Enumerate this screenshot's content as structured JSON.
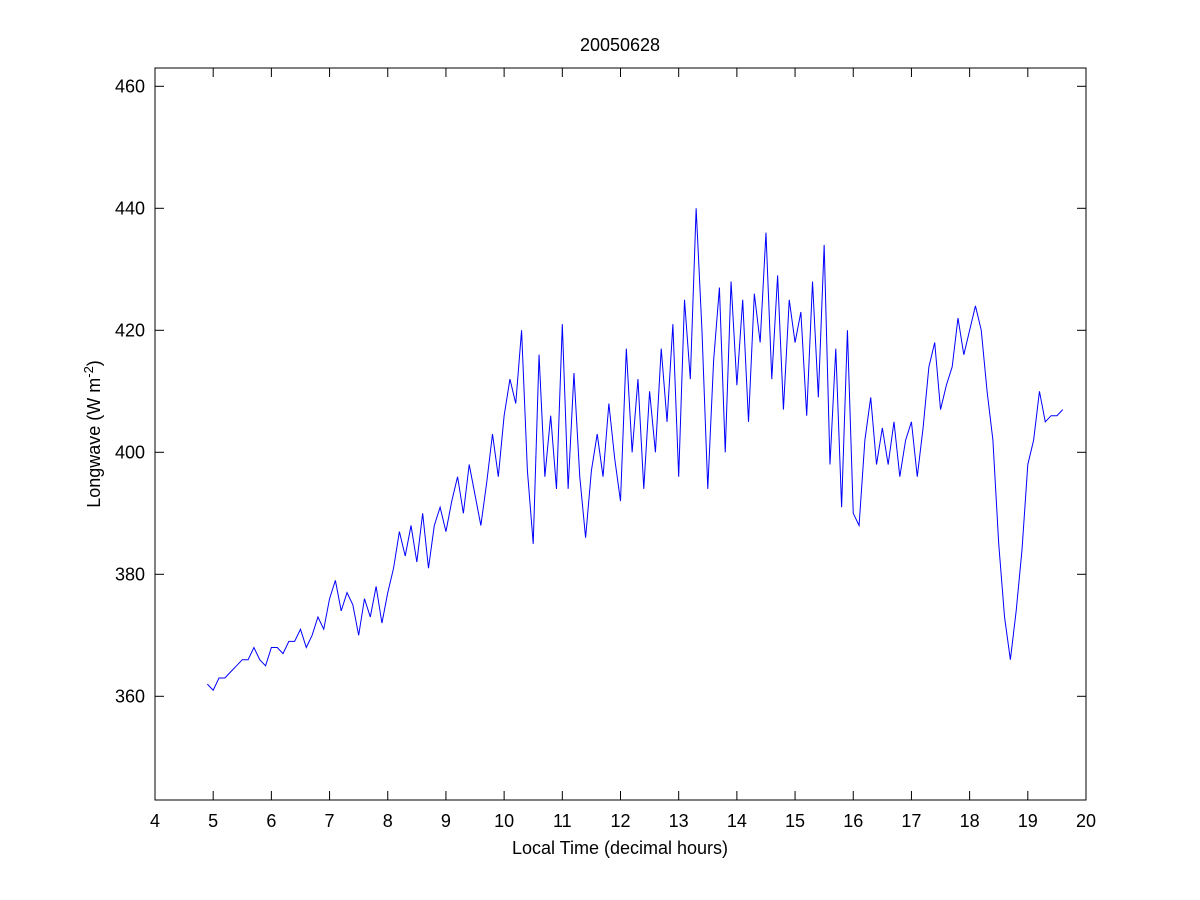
{
  "chart_data": {
    "type": "line",
    "title": "20050628",
    "xlabel": "Local Time (decimal hours)",
    "ylabel": [
      "Longwave (W m",
      "-2",
      ")"
    ],
    "color": "#0000ff",
    "grid": false,
    "xlim": [
      4,
      20
    ],
    "xticks": [
      4,
      5,
      6,
      7,
      8,
      9,
      10,
      11,
      12,
      13,
      14,
      15,
      16,
      17,
      18,
      19,
      20
    ],
    "ylim": [
      343,
      463
    ],
    "yticks": [
      360,
      380,
      400,
      420,
      440,
      460
    ],
    "x": [
      4.9,
      5.0,
      5.1,
      5.2,
      5.3,
      5.4,
      5.5,
      5.6,
      5.7,
      5.8,
      5.9,
      6.0,
      6.1,
      6.2,
      6.3,
      6.4,
      6.5,
      6.6,
      6.7,
      6.8,
      6.9,
      7.0,
      7.1,
      7.2,
      7.3,
      7.4,
      7.5,
      7.6,
      7.7,
      7.8,
      7.9,
      8.0,
      8.1,
      8.2,
      8.3,
      8.4,
      8.5,
      8.6,
      8.7,
      8.8,
      8.9,
      9.0,
      9.1,
      9.2,
      9.3,
      9.4,
      9.5,
      9.6,
      9.7,
      9.8,
      9.9,
      10.0,
      10.1,
      10.2,
      10.3,
      10.4,
      10.5,
      10.6,
      10.7,
      10.8,
      10.9,
      11.0,
      11.1,
      11.2,
      11.3,
      11.4,
      11.5,
      11.6,
      11.7,
      11.8,
      11.9,
      12.0,
      12.1,
      12.2,
      12.3,
      12.4,
      12.5,
      12.6,
      12.7,
      12.8,
      12.9,
      13.0,
      13.1,
      13.2,
      13.3,
      13.4,
      13.5,
      13.6,
      13.7,
      13.8,
      13.9,
      14.0,
      14.1,
      14.2,
      14.3,
      14.4,
      14.5,
      14.6,
      14.7,
      14.8,
      14.9,
      15.0,
      15.1,
      15.2,
      15.3,
      15.4,
      15.5,
      15.6,
      15.7,
      15.8,
      15.9,
      16.0,
      16.1,
      16.2,
      16.3,
      16.4,
      16.5,
      16.6,
      16.7,
      16.8,
      16.9,
      17.0,
      17.1,
      17.2,
      17.3,
      17.4,
      17.5,
      17.6,
      17.7,
      17.8,
      17.9,
      18.0,
      18.1,
      18.2,
      18.3,
      18.4,
      18.5,
      18.6,
      18.7,
      18.8,
      18.9,
      19.0,
      19.1,
      19.2,
      19.3,
      19.4,
      19.5,
      19.6
    ],
    "values": [
      362,
      361,
      363,
      363,
      364,
      365,
      366,
      366,
      368,
      366,
      365,
      368,
      368,
      367,
      369,
      369,
      371,
      368,
      370,
      373,
      371,
      376,
      379,
      374,
      377,
      375,
      370,
      376,
      373,
      378,
      372,
      377,
      381,
      387,
      383,
      388,
      382,
      390,
      381,
      388,
      391,
      387,
      392,
      396,
      390,
      398,
      393,
      388,
      395,
      403,
      396,
      406,
      412,
      408,
      420,
      397,
      385,
      416,
      396,
      406,
      394,
      421,
      394,
      413,
      396,
      386,
      397,
      403,
      396,
      408,
      399,
      392,
      417,
      400,
      412,
      394,
      410,
      400,
      417,
      405,
      421,
      396,
      425,
      412,
      440,
      420,
      394,
      415,
      427,
      400,
      428,
      411,
      425,
      405,
      426,
      418,
      436,
      412,
      429,
      407,
      425,
      418,
      423,
      406,
      428,
      409,
      434,
      398,
      417,
      391,
      420,
      390,
      388,
      402,
      409,
      398,
      404,
      398,
      405,
      396,
      402,
      405,
      396,
      404,
      414,
      418,
      407,
      411,
      414,
      422,
      416,
      420,
      424,
      420,
      410,
      402,
      385,
      373,
      366,
      374,
      384,
      398,
      402,
      410,
      405,
      406,
      406,
      407
    ]
  }
}
